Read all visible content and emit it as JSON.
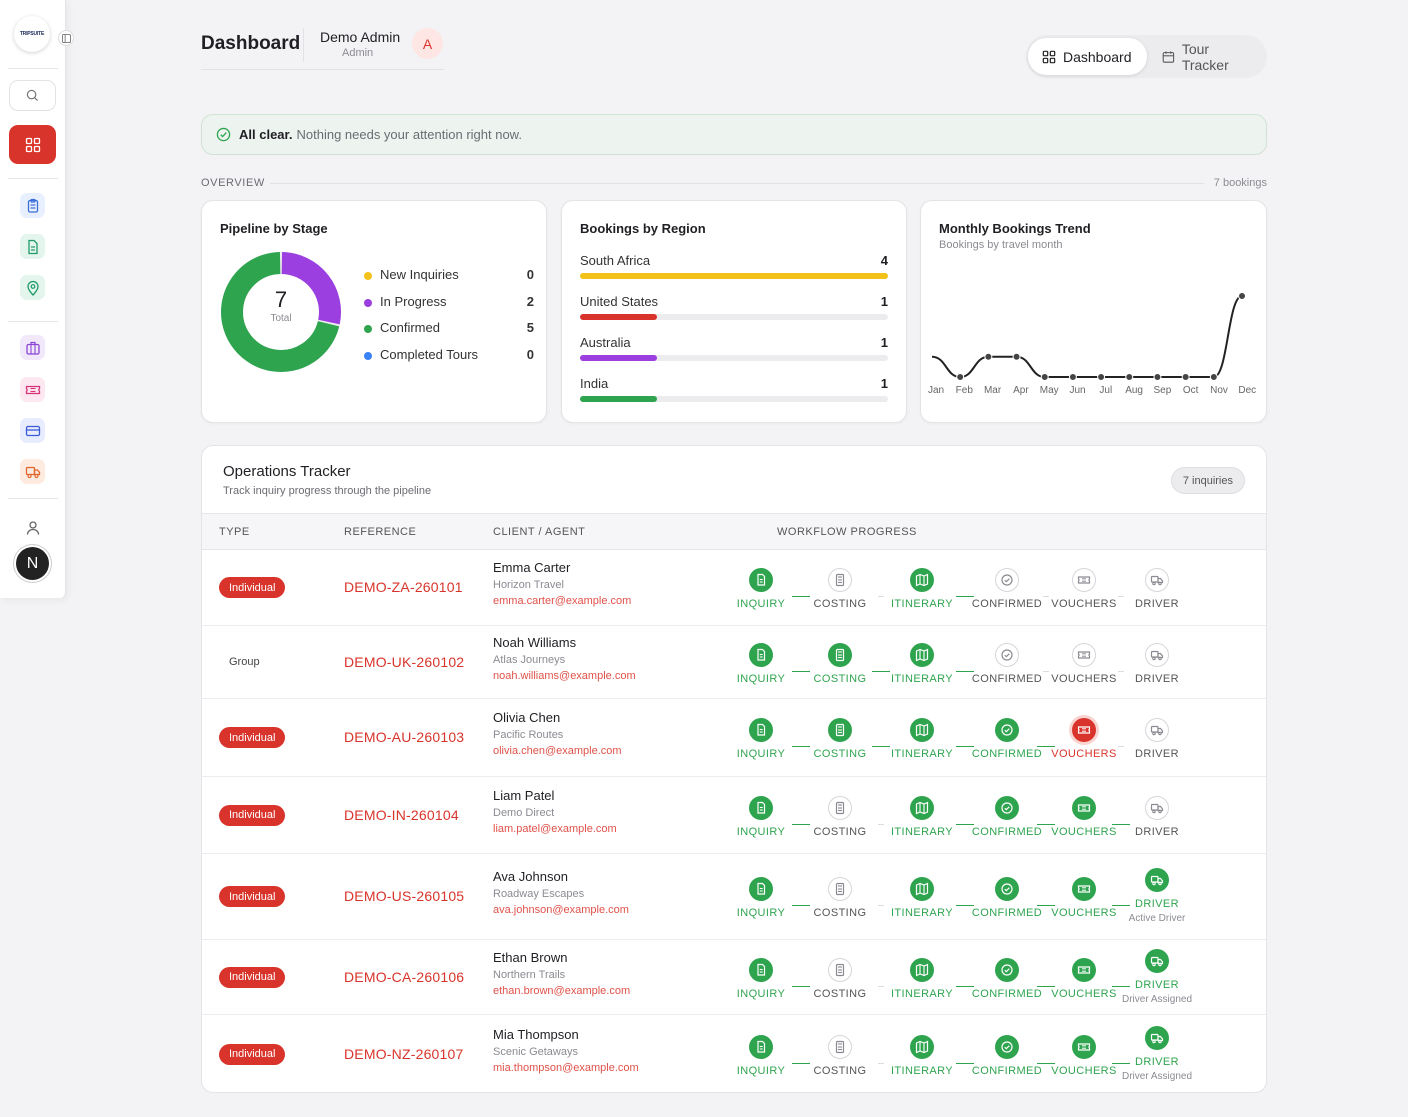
{
  "brand": {
    "logo_text": "TRIPSUITE"
  },
  "header": {
    "title": "Dashboard",
    "user_name": "Demo Admin",
    "user_role": "Admin",
    "avatar_initial": "A"
  },
  "sidebar": {
    "avatar_initial": "N",
    "items": [
      {
        "icon": "clipboard-icon",
        "color": "#3b6fd9",
        "bg": "#e8efff"
      },
      {
        "icon": "document-icon",
        "color": "#1f9a6a",
        "bg": "#e3f5ec"
      },
      {
        "icon": "map-pin-icon",
        "color": "#1f9a6a",
        "bg": "#e3f5ec"
      },
      {
        "icon": "briefcase-icon",
        "color": "#8a45d6",
        "bg": "#f1e8fc"
      },
      {
        "icon": "ticket-icon",
        "color": "#d6337a",
        "bg": "#fde7f0"
      },
      {
        "icon": "card-icon",
        "color": "#3b5bd9",
        "bg": "#e8ecff"
      },
      {
        "icon": "truck-icon",
        "color": "#e0662b",
        "bg": "#fdebe0"
      }
    ]
  },
  "tabs": [
    {
      "label": "Dashboard",
      "icon": "grid-icon",
      "active": true
    },
    {
      "label": "Tour Tracker",
      "icon": "calendar-icon",
      "active": false
    }
  ],
  "alert": {
    "strong": "All clear.",
    "text": "Nothing needs your attention right now."
  },
  "overview": {
    "label": "OVERVIEW",
    "count": "7 bookings"
  },
  "pipeline": {
    "title": "Pipeline by Stage",
    "total": "7",
    "total_label": "Total",
    "stages": [
      {
        "label": "New Inquiries",
        "value": "0",
        "color": "#f2c21b"
      },
      {
        "label": "In Progress",
        "value": "2",
        "color": "#9b3fe0"
      },
      {
        "label": "Confirmed",
        "value": "5",
        "color": "#2fa44f"
      },
      {
        "label": "Completed Tours",
        "value": "0",
        "color": "#3b82f6"
      }
    ]
  },
  "regions": {
    "title": "Bookings by Region",
    "items": [
      {
        "name": "South Africa",
        "count": "4",
        "value": 4,
        "color": "#f2c21b"
      },
      {
        "name": "United States",
        "count": "1",
        "value": 1,
        "color": "#d9342b"
      },
      {
        "name": "Australia",
        "count": "1",
        "value": 1,
        "color": "#9b3fe0"
      },
      {
        "name": "India",
        "count": "1",
        "value": 1,
        "color": "#2fa44f"
      }
    ]
  },
  "chart_data": {
    "type": "line",
    "title": "Monthly Bookings Trend",
    "subtitle": "Bookings by travel month",
    "categories": [
      "Jan",
      "Feb",
      "Mar",
      "Apr",
      "May",
      "Jun",
      "Jul",
      "Aug",
      "Sep",
      "Oct",
      "Nov",
      "Dec"
    ],
    "series": [
      {
        "values": [
          1,
          0,
          1,
          1,
          0,
          0,
          0,
          0,
          0,
          0,
          0,
          4
        ]
      }
    ],
    "ylim": [
      0,
      4
    ],
    "grid": false
  },
  "ops": {
    "title": "Operations Tracker",
    "subtitle": "Track inquiry progress through the pipeline",
    "badge": "7 inquiries",
    "columns": [
      "TYPE",
      "REFERENCE",
      "CLIENT / AGENT",
      "WORKFLOW PROGRESS"
    ],
    "step_labels": [
      "INQUIRY",
      "COSTING",
      "ITINERARY",
      "CONFIRMED",
      "VOUCHERS",
      "DRIVER"
    ],
    "rows": [
      {
        "type": "Individual",
        "ref": "DEMO-ZA-260101",
        "name": "Emma Carter",
        "agent": "Horizon Travel",
        "email": "emma.carter@example.com",
        "steps": [
          "done",
          "todo",
          "done",
          "todo",
          "todo",
          "todo"
        ],
        "driver_note": ""
      },
      {
        "type": "Group",
        "ref": "DEMO-UK-260102",
        "name": "Noah Williams",
        "agent": "Atlas Journeys",
        "email": "noah.williams@example.com",
        "steps": [
          "done",
          "done",
          "done",
          "todo",
          "todo",
          "todo"
        ],
        "driver_note": ""
      },
      {
        "type": "Individual",
        "ref": "DEMO-AU-260103",
        "name": "Olivia Chen",
        "agent": "Pacific Routes",
        "email": "olivia.chen@example.com",
        "steps": [
          "done",
          "done",
          "done",
          "done",
          "curr",
          "todo"
        ],
        "driver_note": ""
      },
      {
        "type": "Individual",
        "ref": "DEMO-IN-260104",
        "name": "Liam Patel",
        "agent": "Demo Direct",
        "email": "liam.patel@example.com",
        "steps": [
          "done",
          "todo",
          "done",
          "done",
          "done",
          "todo"
        ],
        "driver_note": ""
      },
      {
        "type": "Individual",
        "ref": "DEMO-US-260105",
        "name": "Ava Johnson",
        "agent": "Roadway Escapes",
        "email": "ava.johnson@example.com",
        "steps": [
          "done",
          "todo",
          "done",
          "done",
          "done",
          "done"
        ],
        "driver_note": "Active Driver"
      },
      {
        "type": "Individual",
        "ref": "DEMO-CA-260106",
        "name": "Ethan Brown",
        "agent": "Northern Trails",
        "email": "ethan.brown@example.com",
        "steps": [
          "done",
          "todo",
          "done",
          "done",
          "done",
          "done"
        ],
        "driver_note": "Driver Assigned"
      },
      {
        "type": "Individual",
        "ref": "DEMO-NZ-260107",
        "name": "Mia Thompson",
        "agent": "Scenic Getaways",
        "email": "mia.thompson@example.com",
        "steps": [
          "done",
          "todo",
          "done",
          "done",
          "done",
          "done"
        ],
        "driver_note": "Driver Assigned"
      }
    ]
  }
}
